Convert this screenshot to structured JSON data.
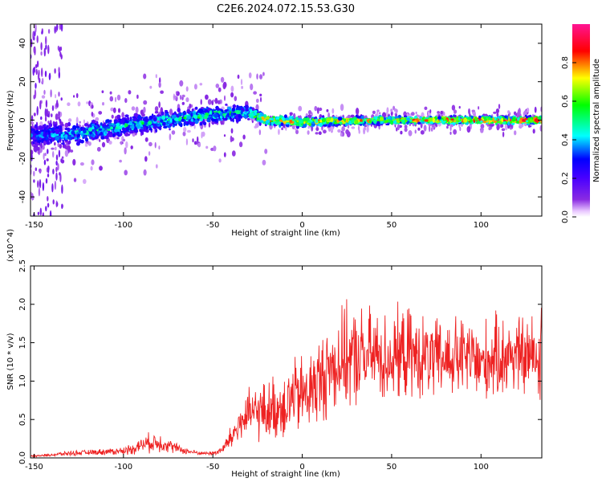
{
  "title": "C2E6.2024.072.15.53.G30",
  "colors": {
    "line": "#ee2222",
    "frame": "#000000"
  },
  "chart_data": [
    {
      "type": "heatmap",
      "xlabel": "Height of straight line (km)",
      "ylabel": "Frequency (Hz)",
      "xlim": [
        -152,
        134
      ],
      "ylim": [
        -50,
        50
      ],
      "x_ticks": [
        -150,
        -100,
        -50,
        0,
        50,
        100
      ],
      "y_ticks": [
        -40,
        -20,
        0,
        20,
        40
      ],
      "colormap": "rainbow (white→purple→blue→cyan→green→yellow→red→pink)",
      "colorbar": {
        "label": "Normalized spectral amplitude",
        "range": [
          0,
          1
        ],
        "ticks": [
          "0.0",
          "0.2",
          "0.4",
          "0.6",
          "0.8"
        ]
      },
      "ridge": [
        {
          "x": -150,
          "freq_center": -8,
          "width": 14,
          "level": 0.35
        },
        {
          "x": -125,
          "freq_center": -7,
          "width": 12,
          "level": 0.45
        },
        {
          "x": -100,
          "freq_center": -3,
          "width": 11,
          "level": 0.5
        },
        {
          "x": -75,
          "freq_center": 0,
          "width": 10,
          "level": 0.5
        },
        {
          "x": -50,
          "freq_center": 3,
          "width": 9,
          "level": 0.55
        },
        {
          "x": -30,
          "freq_center": 4,
          "width": 8,
          "level": 0.5
        },
        {
          "x": -20,
          "freq_center": 0,
          "width": 5,
          "level": 0.85
        },
        {
          "x": 0,
          "freq_center": -1,
          "width": 5,
          "level": 0.8
        },
        {
          "x": 50,
          "freq_center": 0,
          "width": 4,
          "level": 0.8
        },
        {
          "x": 100,
          "freq_center": 0,
          "width": 4,
          "level": 0.9
        },
        {
          "x": 132,
          "freq_center": 0,
          "width": 4,
          "level": 0.9
        }
      ]
    },
    {
      "type": "line",
      "xlabel": "Height of straight line (km)",
      "ylabel": "SNR (10 * v/v)",
      "y_multiplier": "(x10^4)",
      "xlim": [
        -152,
        134
      ],
      "ylim": [
        0,
        2.5
      ],
      "x_ticks": [
        -150,
        -100,
        -50,
        0,
        50,
        100
      ],
      "y_ticks": [
        "0.0",
        "0.5",
        "1.0",
        "1.5",
        "2.0",
        "2.5"
      ],
      "series": [
        {
          "color": "#ee2222",
          "x": [
            -152,
            -140,
            -130,
            -120,
            -110,
            -100,
            -95,
            -90,
            -85,
            -80,
            -75,
            -70,
            -65,
            -60,
            -55,
            -50,
            -45,
            -40,
            -35,
            -30,
            -25,
            -20,
            -15,
            -10,
            -5,
            0,
            5,
            10,
            15,
            20,
            25,
            30,
            35,
            40,
            45,
            50,
            55,
            60,
            65,
            70,
            75,
            80,
            85,
            90,
            95,
            100,
            105,
            110,
            115,
            120,
            125,
            130,
            134
          ],
          "y": [
            0.02,
            0.04,
            0.06,
            0.07,
            0.08,
            0.09,
            0.12,
            0.17,
            0.2,
            0.2,
            0.17,
            0.12,
            0.09,
            0.07,
            0.06,
            0.06,
            0.1,
            0.25,
            0.45,
            0.55,
            0.6,
            0.6,
            0.65,
            0.7,
            0.8,
            0.8,
            0.9,
            1.0,
            1.15,
            1.25,
            1.3,
            1.3,
            1.3,
            1.35,
            1.3,
            1.3,
            1.35,
            1.35,
            1.3,
            1.3,
            1.25,
            1.3,
            1.3,
            1.3,
            1.3,
            1.2,
            1.3,
            1.3,
            1.35,
            1.35,
            1.3,
            1.35,
            1.2
          ],
          "amplitude_of_variation": [
            0.01,
            0.02,
            0.03,
            0.03,
            0.04,
            0.05,
            0.07,
            0.09,
            0.12,
            0.12,
            0.09,
            0.06,
            0.04,
            0.03,
            0.02,
            0.03,
            0.05,
            0.15,
            0.25,
            0.3,
            0.35,
            0.35,
            0.4,
            0.45,
            0.45,
            0.5,
            0.5,
            0.55,
            0.55,
            0.6,
            0.6,
            0.6,
            0.6,
            0.55,
            0.55,
            0.55,
            0.55,
            0.55,
            0.5,
            0.5,
            0.5,
            0.5,
            0.5,
            0.5,
            0.5,
            0.5,
            0.5,
            0.5,
            0.5,
            0.5,
            0.5,
            0.5,
            0.5
          ]
        }
      ]
    }
  ]
}
